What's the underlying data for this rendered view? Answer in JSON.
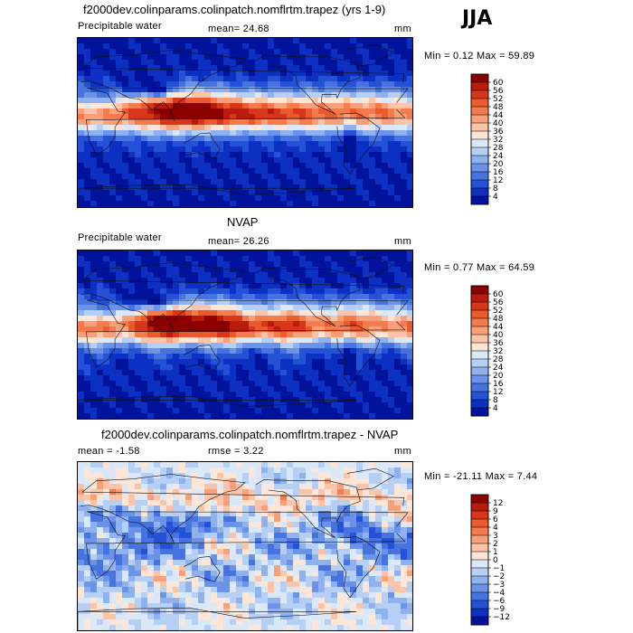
{
  "season": "JJA",
  "chart_data": [
    {
      "type": "heatmap",
      "title": "f2000dev.colinparams.colinpatch.nomflrtm.trapez (yrs 1-9)",
      "left_label": "Precipitable water",
      "center_label": "mean=  24.68",
      "units": "mm",
      "minmax_label": "Min =   0.12 Max =  59.89",
      "min": 0.12,
      "max": 59.89,
      "mean": 24.68,
      "colorbar_levels": [
        "60",
        "56",
        "52",
        "48",
        "44",
        "40",
        "36",
        "32",
        "28",
        "24",
        "20",
        "16",
        "12",
        "8",
        "4"
      ],
      "colormap": [
        "#8b0000",
        "#b71c0c",
        "#d6361a",
        "#e95a2c",
        "#f47b4d",
        "#f8a07a",
        "#fbc4a8",
        "#fde6d8",
        "#dbe8f8",
        "#b6cff4",
        "#8fb2ee",
        "#6b93e8",
        "#4773e0",
        "#2451d6",
        "#0b30c2",
        "#00139a"
      ]
    },
    {
      "type": "heatmap",
      "title": "NVAP",
      "left_label": "Precipitable water",
      "center_label": "mean=  26.26",
      "units": "mm",
      "minmax_label": "Min =   0.77 Max =  64.59",
      "min": 0.77,
      "max": 64.59,
      "mean": 26.26,
      "colorbar_levels": [
        "60",
        "56",
        "52",
        "48",
        "44",
        "40",
        "36",
        "32",
        "28",
        "24",
        "20",
        "16",
        "12",
        "8",
        "4"
      ],
      "colormap": [
        "#8b0000",
        "#b71c0c",
        "#d6361a",
        "#e95a2c",
        "#f47b4d",
        "#f8a07a",
        "#fbc4a8",
        "#fde6d8",
        "#dbe8f8",
        "#b6cff4",
        "#8fb2ee",
        "#6b93e8",
        "#4773e0",
        "#2451d6",
        "#0b30c2",
        "#00139a"
      ]
    },
    {
      "type": "heatmap",
      "title": "f2000dev.colinparams.colinpatch.nomflrtm.trapez - NVAP",
      "left_label": "mean =   -1.58",
      "center_label": "rmse =    3.22",
      "units": "mm",
      "minmax_label": "Min = -21.11 Max =    7.44",
      "min": -21.11,
      "max": 7.44,
      "mean": -1.58,
      "rmse": 3.22,
      "colorbar_levels": [
        "12",
        "9",
        "6",
        "4",
        "3",
        "2",
        "1",
        "0",
        "−1",
        "−2",
        "−3",
        "−4",
        "−6",
        "−9",
        "−12"
      ],
      "colormap": [
        "#8b0000",
        "#b71c0c",
        "#d6361a",
        "#e95a2c",
        "#f47b4d",
        "#f8a07a",
        "#fbc4a8",
        "#fde6d8",
        "#dbe8f8",
        "#b6cff4",
        "#8fb2ee",
        "#6b93e8",
        "#4773e0",
        "#2451d6",
        "#0b30c2",
        "#00139a"
      ]
    }
  ]
}
